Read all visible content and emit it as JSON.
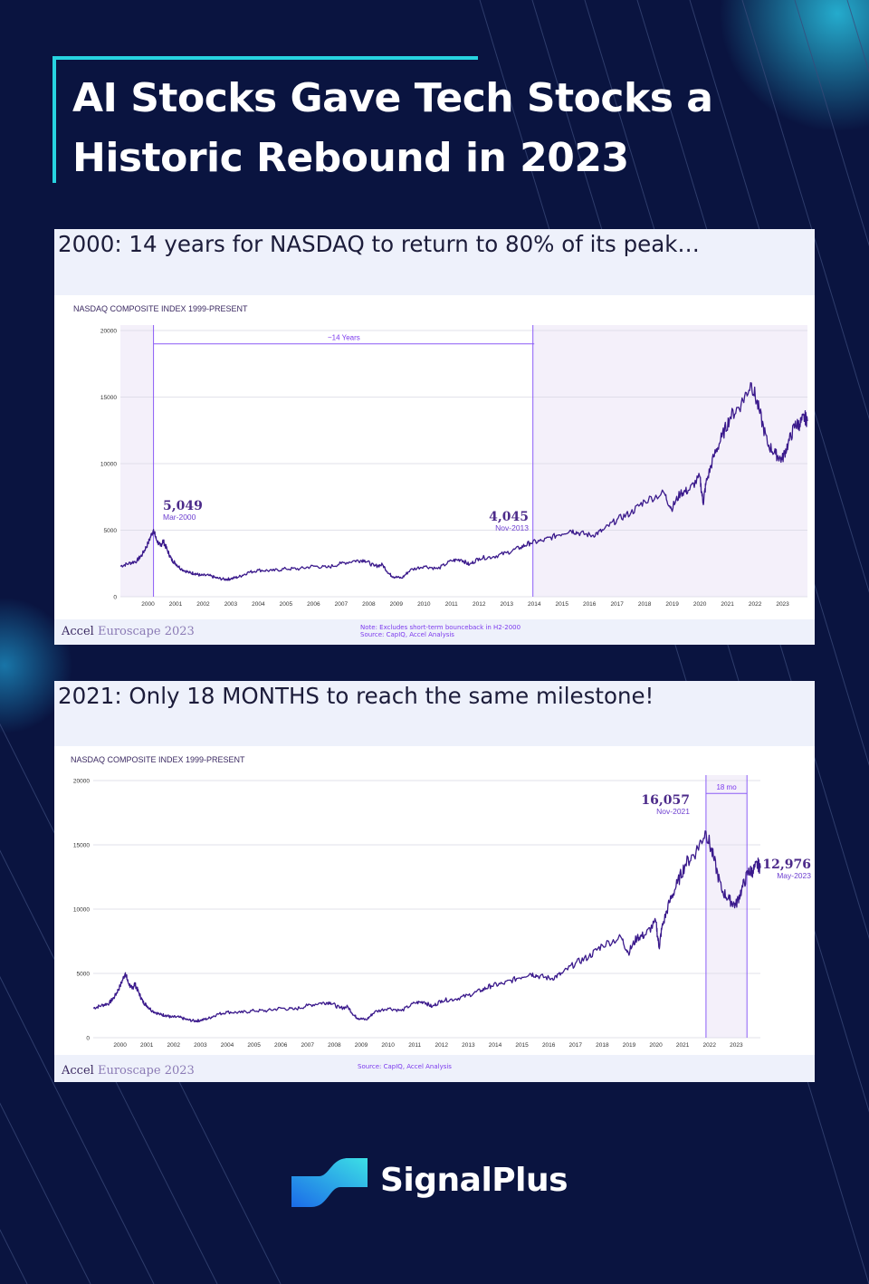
{
  "title": {
    "line1": "AI Stocks Gave Tech Stocks a",
    "line2": "Historic Rebound in 2023"
  },
  "colors": {
    "background": "#0a1440",
    "accent": "#27d3e0",
    "series": "#3b1a8c",
    "annotation": "#7c3aed"
  },
  "brand": {
    "name": "SignalPlus",
    "icon": "signalplus-logo-icon"
  },
  "panels": [
    {
      "heading": "2000: 14 years for NASDAQ to return to 80% of its peak…",
      "logo": {
        "accel": "Accel",
        "euroscape": "Euroscape 2023"
      },
      "note_line1": "Note: Excludes short-term bounceback in H2-2000",
      "note_line2": "Source: CapIQ, Accel Analysis"
    },
    {
      "heading": "2021: Only 18 MONTHS to reach the same milestone!",
      "logo": {
        "accel": "Accel",
        "euroscape": "Euroscape 2023"
      },
      "note_line1": "Source: CapIQ, Accel Analysis"
    }
  ],
  "chart_data": [
    {
      "type": "line",
      "title": "NASDAQ COMPOSITE INDEX 1999-PRESENT",
      "xlabel": "",
      "ylabel": "",
      "xlim": [
        1999,
        2023.9
      ],
      "ylim": [
        0,
        20000
      ],
      "yticks": [
        0,
        5000,
        10000,
        15000,
        20000
      ],
      "ytick_labels": [
        "0",
        "5000",
        "10000",
        "15000",
        "20000"
      ],
      "xticks": [
        2000,
        2001,
        2002,
        2003,
        2004,
        2005,
        2006,
        2007,
        2008,
        2009,
        2010,
        2011,
        2012,
        2013,
        2014,
        2015,
        2016,
        2017,
        2018,
        2019,
        2020,
        2021,
        2022,
        2023
      ],
      "xtick_labels": [
        "2000",
        "2001",
        "2002",
        "2003",
        "2004",
        "2005",
        "2006",
        "2007",
        "2008",
        "2009",
        "2010",
        "2011",
        "2012",
        "2013",
        "2014",
        "2015",
        "2016",
        "2017",
        "2018",
        "2019",
        "2020",
        "2021",
        "2022",
        "2023"
      ],
      "series": [
        {
          "name": "NASDAQ Composite",
          "x": [
            1999.0,
            1999.3,
            1999.6,
            1999.8,
            2000.0,
            2000.2,
            2000.3,
            2000.45,
            2000.55,
            2000.7,
            2000.85,
            2001.0,
            2001.2,
            2001.5,
            2001.7,
            2001.9,
            2002.2,
            2002.5,
            2002.8,
            2003.0,
            2003.3,
            2003.6,
            2004.0,
            2004.5,
            2005.0,
            2005.5,
            2006.0,
            2006.5,
            2007.0,
            2007.5,
            2007.85,
            2008.2,
            2008.5,
            2008.75,
            2008.9,
            2009.2,
            2009.5,
            2010.0,
            2010.5,
            2011.0,
            2011.35,
            2011.65,
            2012.0,
            2012.5,
            2013.0,
            2013.5,
            2013.85,
            2014.3,
            2014.8,
            2015.3,
            2015.6,
            2016.1,
            2016.5,
            2017.0,
            2017.5,
            2018.0,
            2018.7,
            2018.97,
            2019.3,
            2019.6,
            2020.0,
            2020.12,
            2020.22,
            2020.5,
            2020.8,
            2021.1,
            2021.5,
            2021.87,
            2022.15,
            2022.45,
            2022.75,
            2022.98,
            2023.2,
            2023.45,
            2023.62,
            2023.8,
            2023.9
          ],
          "y": [
            2300,
            2500,
            2700,
            3200,
            4000,
            5049,
            4300,
            3800,
            4200,
            3500,
            2800,
            2500,
            2100,
            1800,
            1750,
            1600,
            1600,
            1400,
            1300,
            1350,
            1500,
            1800,
            2000,
            1950,
            2100,
            2100,
            2300,
            2200,
            2500,
            2700,
            2750,
            2300,
            2400,
            1700,
            1500,
            1400,
            2000,
            2300,
            2100,
            2700,
            2800,
            2400,
            2900,
            3000,
            3300,
            3700,
            4045,
            4200,
            4600,
            5000,
            4800,
            4600,
            5000,
            5800,
            6300,
            7200,
            7800,
            6600,
            7800,
            8000,
            9000,
            7000,
            8500,
            10500,
            12000,
            13500,
            14500,
            16057,
            14000,
            11500,
            10700,
            10300,
            11500,
            12900,
            12976,
            13500,
            13200
          ]
        }
      ],
      "annotations": [
        {
          "label": "5,049",
          "sublabel": "Mar-2000",
          "x": 2000.2,
          "y": 5049
        },
        {
          "label": "4,045",
          "sublabel": "Nov-2013",
          "x": 2013.85,
          "y": 4045
        },
        {
          "label": "~14 Years",
          "x_start": 2000.2,
          "x_end": 2014.0,
          "y": 19000
        }
      ]
    },
    {
      "type": "line",
      "title": "NASDAQ COMPOSITE INDEX 1999-PRESENT",
      "xlabel": "",
      "ylabel": "",
      "xlim": [
        1999,
        2023.9
      ],
      "ylim": [
        0,
        20000
      ],
      "yticks": [
        0,
        5000,
        10000,
        15000,
        20000
      ],
      "ytick_labels": [
        "0",
        "5000",
        "10000",
        "15000",
        "20000"
      ],
      "xticks": [
        2000,
        2001,
        2002,
        2003,
        2004,
        2005,
        2006,
        2007,
        2008,
        2009,
        2010,
        2011,
        2012,
        2013,
        2014,
        2015,
        2016,
        2017,
        2018,
        2019,
        2020,
        2021,
        2022,
        2023
      ],
      "xtick_labels": [
        "2000",
        "2001",
        "2002",
        "2003",
        "2004",
        "2005",
        "2006",
        "2007",
        "2008",
        "2009",
        "2010",
        "2011",
        "2012",
        "2013",
        "2014",
        "2015",
        "2016",
        "2017",
        "2018",
        "2019",
        "2020",
        "2021",
        "2022",
        "2023"
      ],
      "series": [
        {
          "name": "NASDAQ Composite",
          "x": [
            1999.0,
            1999.3,
            1999.6,
            1999.8,
            2000.0,
            2000.2,
            2000.3,
            2000.45,
            2000.55,
            2000.7,
            2000.85,
            2001.0,
            2001.2,
            2001.5,
            2001.7,
            2001.9,
            2002.2,
            2002.5,
            2002.8,
            2003.0,
            2003.3,
            2003.6,
            2004.0,
            2004.5,
            2005.0,
            2005.5,
            2006.0,
            2006.5,
            2007.0,
            2007.5,
            2007.85,
            2008.2,
            2008.5,
            2008.75,
            2008.9,
            2009.2,
            2009.5,
            2010.0,
            2010.5,
            2011.0,
            2011.35,
            2011.65,
            2012.0,
            2012.5,
            2013.0,
            2013.5,
            2013.85,
            2014.3,
            2014.8,
            2015.3,
            2015.6,
            2016.1,
            2016.5,
            2017.0,
            2017.5,
            2018.0,
            2018.7,
            2018.97,
            2019.3,
            2019.6,
            2020.0,
            2020.12,
            2020.22,
            2020.5,
            2020.8,
            2021.1,
            2021.5,
            2021.87,
            2022.15,
            2022.45,
            2022.75,
            2022.98,
            2023.2,
            2023.45,
            2023.62,
            2023.8,
            2023.9
          ],
          "y": [
            2300,
            2500,
            2700,
            3200,
            4000,
            5049,
            4300,
            3800,
            4200,
            3500,
            2800,
            2500,
            2100,
            1800,
            1750,
            1600,
            1600,
            1400,
            1300,
            1350,
            1500,
            1800,
            2000,
            1950,
            2100,
            2100,
            2300,
            2200,
            2500,
            2700,
            2750,
            2300,
            2400,
            1700,
            1500,
            1400,
            2000,
            2300,
            2100,
            2700,
            2800,
            2400,
            2900,
            3000,
            3300,
            3700,
            4045,
            4200,
            4600,
            5000,
            4800,
            4600,
            5000,
            5800,
            6300,
            7200,
            7800,
            6600,
            7800,
            8000,
            9000,
            7000,
            8500,
            10500,
            12000,
            13500,
            14500,
            16057,
            14000,
            11500,
            10700,
            10300,
            11500,
            12900,
            12976,
            13500,
            13200
          ]
        }
      ],
      "annotations": [
        {
          "label": "16,057",
          "sublabel": "Nov-2021",
          "x": 2021.87,
          "y": 16057
        },
        {
          "label": "12,976",
          "sublabel": "May-2023",
          "x": 2023.62,
          "y": 12976
        },
        {
          "label": "18 mo",
          "x_start": 2021.87,
          "x_end": 2023.4,
          "y": 19000
        }
      ]
    }
  ]
}
